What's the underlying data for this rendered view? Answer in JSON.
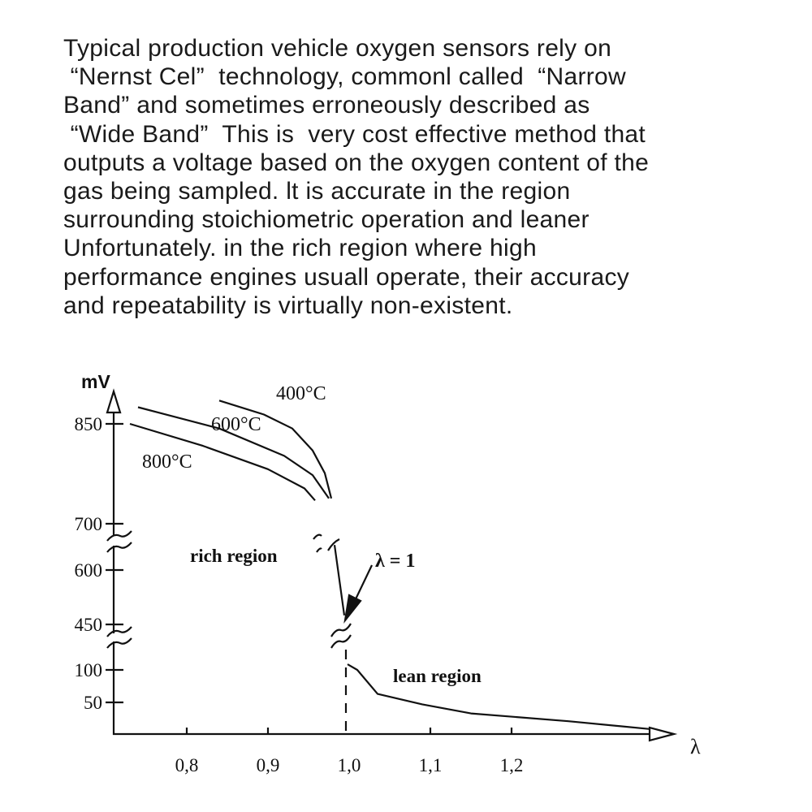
{
  "paragraph": {
    "lines": [
      "Typical production vehicle oxygen sensors rely on",
      " “Nernst Cel”  technology, commonl called  “Narrow",
      "Band” and sometimes erroneously described as",
      " “Wide Band”  This is  very cost effective method that",
      "outputs a voltage based on the oxygen content of the",
      "gas being sampled. lt is accurate in the region",
      "surrounding stoichiometric operation and leaner",
      "Unfortunately. in the rich region where high",
      "performance engines usuall operate, their accuracy",
      "and repeatability is virtually non-existent."
    ]
  },
  "chart_data": {
    "type": "line",
    "ylabel": "mV",
    "xlabel": "λ",
    "x_ticks": [
      "0,8",
      "0,9",
      "1,0",
      "1,1",
      "1,2"
    ],
    "x_tick_values": [
      0.8,
      0.9,
      1.0,
      1.1,
      1.2
    ],
    "y_ticks": [
      "850",
      "700",
      "600",
      "450",
      "100",
      "50"
    ],
    "y_tick_values": [
      850,
      700,
      600,
      450,
      100,
      50
    ],
    "y_axis_breaks": [
      [
        700,
        600
      ],
      [
        450,
        100
      ]
    ],
    "series": [
      {
        "name": "400°C",
        "points": [
          [
            0.84,
            885
          ],
          [
            0.895,
            864
          ],
          [
            0.93,
            843
          ],
          [
            0.955,
            810
          ],
          [
            0.97,
            776
          ],
          [
            0.978,
            738
          ]
        ]
      },
      {
        "name": "600°C",
        "points": [
          [
            0.74,
            875
          ],
          [
            0.84,
            843
          ],
          [
            0.92,
            802
          ],
          [
            0.955,
            773
          ],
          [
            0.975,
            738
          ]
        ]
      },
      {
        "name": "800°C",
        "points": [
          [
            0.73,
            850
          ],
          [
            0.82,
            817
          ],
          [
            0.9,
            782
          ],
          [
            0.945,
            753
          ],
          [
            0.958,
            735
          ]
        ]
      }
    ],
    "common_curve": {
      "rich_part": [
        [
          0.982,
          654
        ],
        [
          0.994,
          475
        ]
      ],
      "lean_part": [
        [
          0.998,
          143
        ],
        [
          1.01,
          100
        ],
        [
          1.035,
          63
        ],
        [
          1.09,
          47
        ],
        [
          1.15,
          33
        ],
        [
          1.27,
          21
        ],
        [
          1.37,
          9
        ]
      ]
    },
    "annotations": {
      "rich": "rich region",
      "lean": "lean region",
      "lambda_one": "λ = 1"
    },
    "stoichiometric_line_x": 1.0,
    "grid": false,
    "legend": "none"
  }
}
